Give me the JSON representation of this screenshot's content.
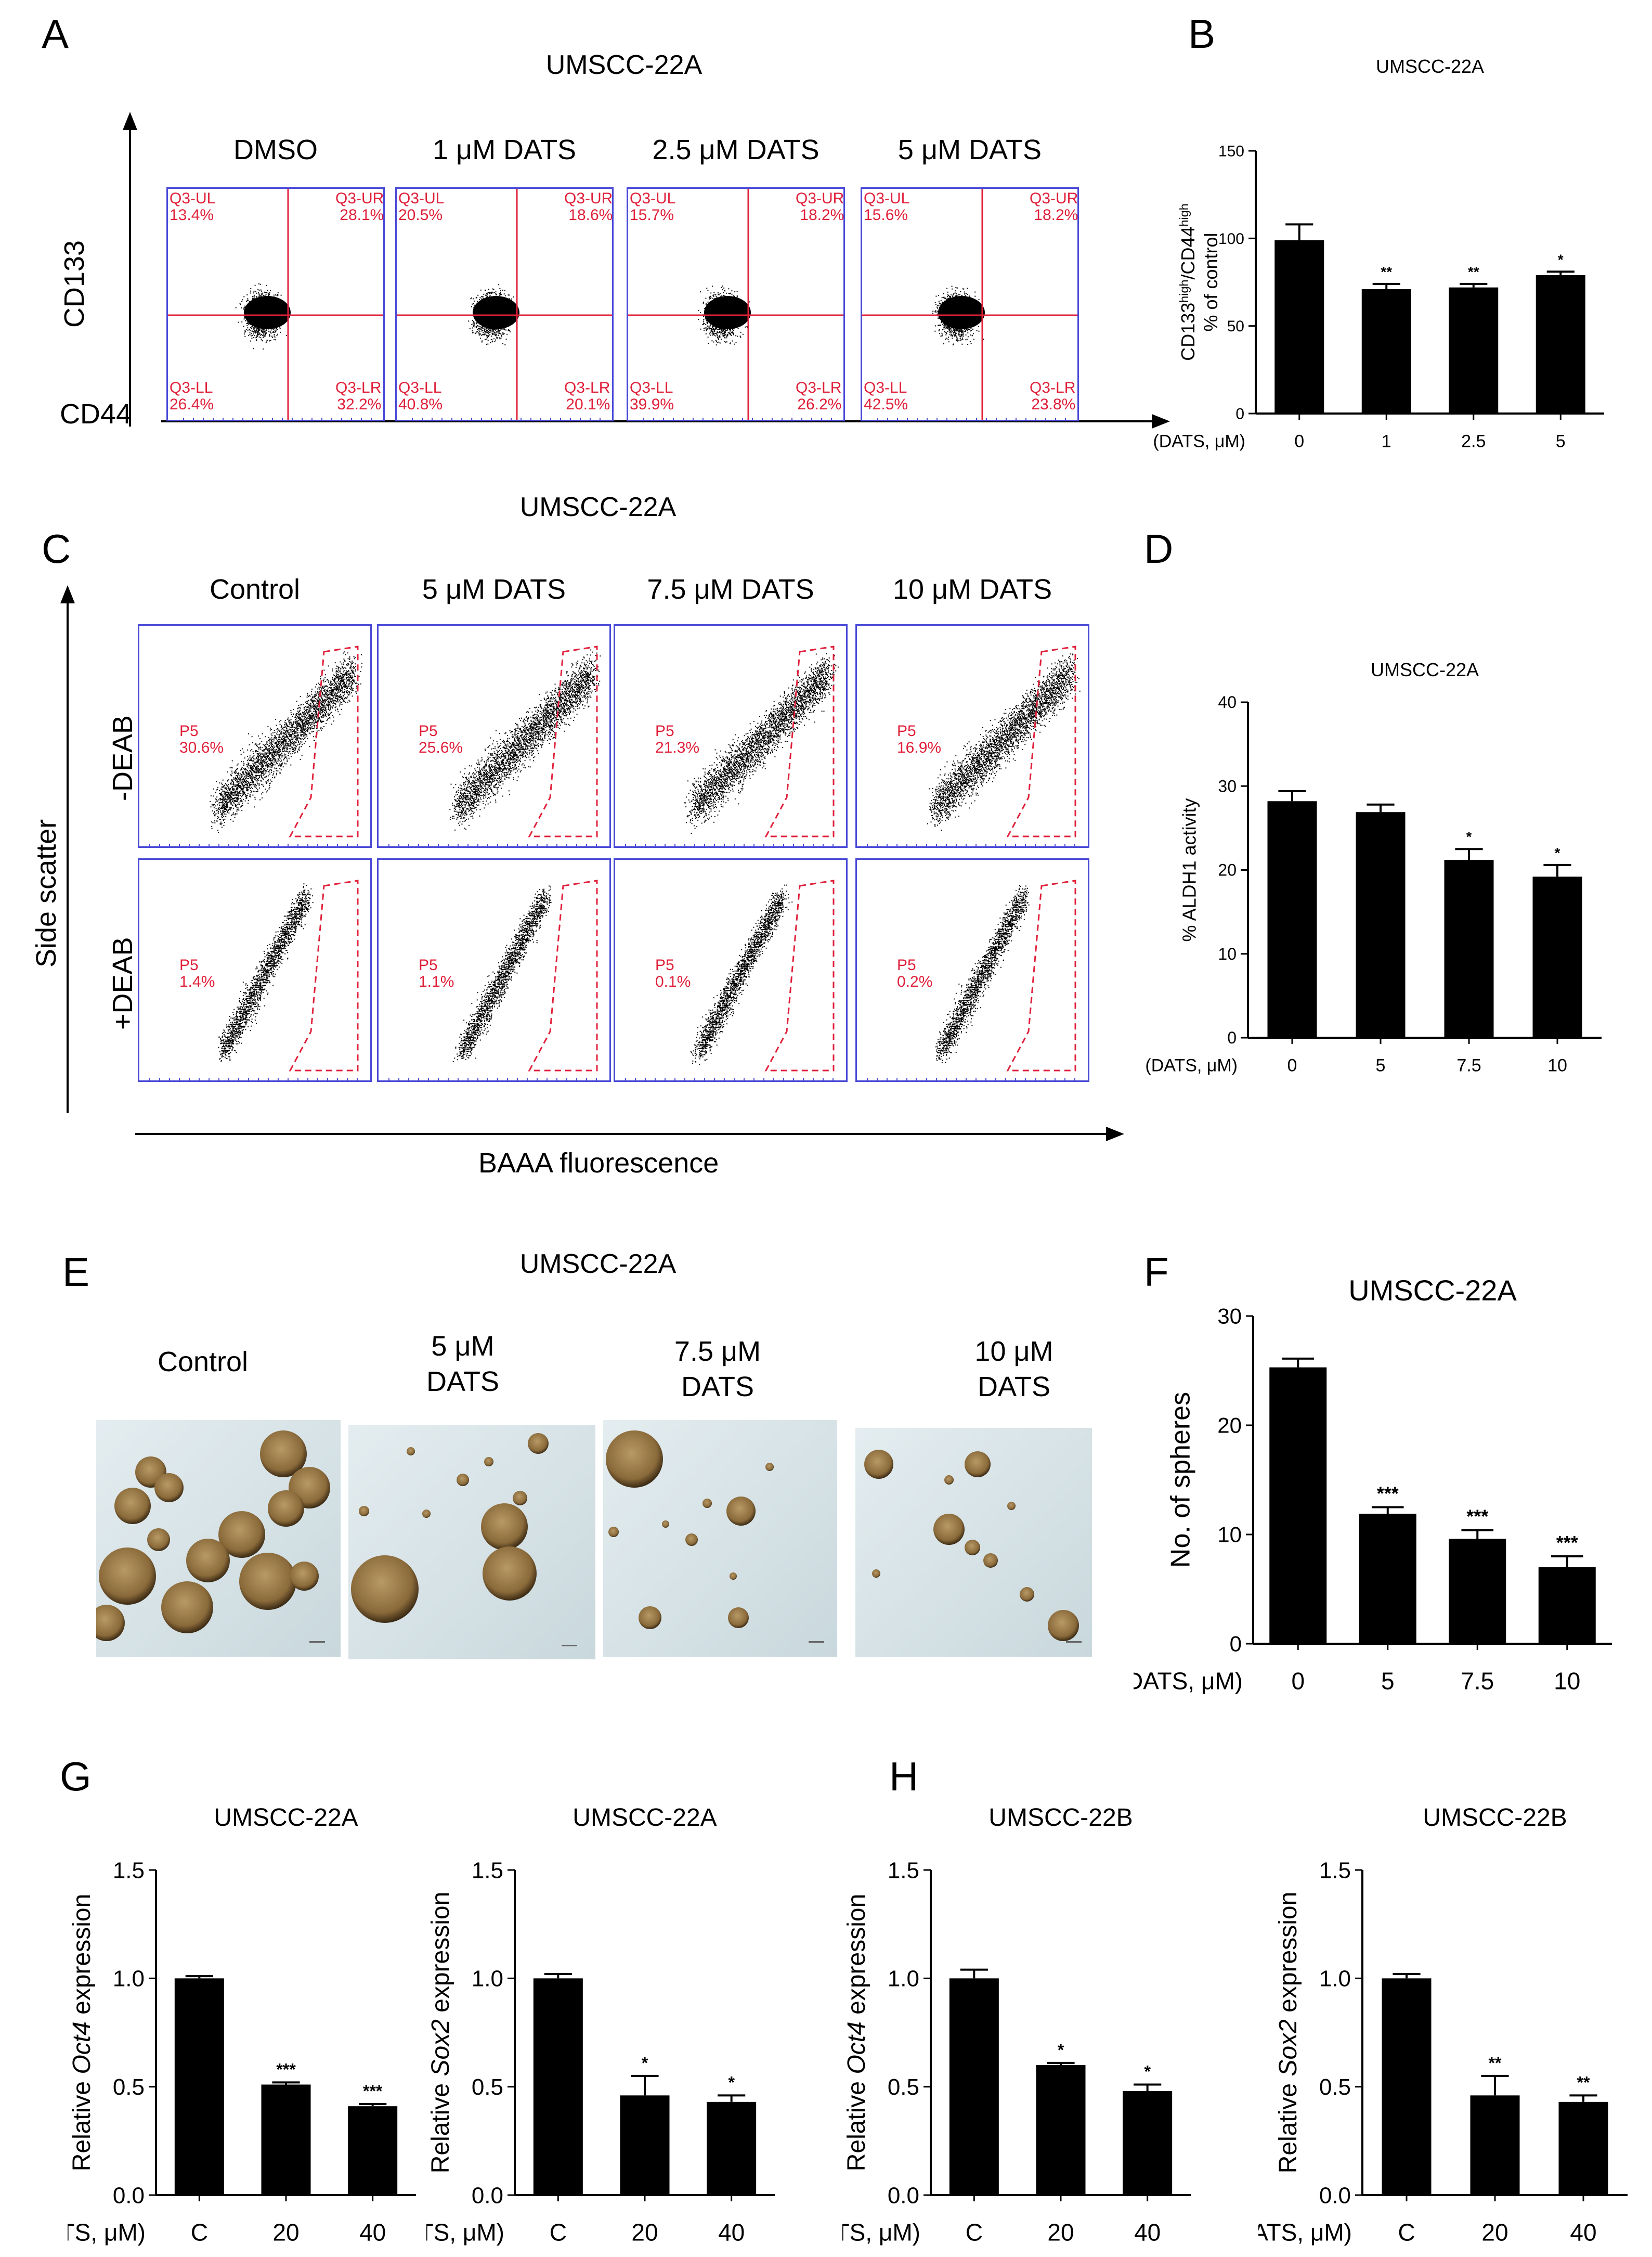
{
  "panel_letters": {
    "A": "A",
    "B": "B",
    "C": "C",
    "D": "D",
    "E": "E",
    "F": "F",
    "G": "G",
    "H": "H"
  },
  "panel_A": {
    "title": "UMSCC-22A",
    "y_axis": "CD133",
    "x_axis": "CD44",
    "plots": [
      {
        "label": "DMSO",
        "UL": "Q3-UL\n13.4%",
        "UR": "Q3-UR\n28.1%",
        "LL": "Q3-LL\n26.4%",
        "LR": "Q3-LR\n32.2%"
      },
      {
        "label": "1 μM  DATS",
        "UL": "Q3-UL\n20.5%",
        "UR": "Q3-UR\n18.6%",
        "LL": "Q3-LL\n40.8%",
        "LR": "Q3-LR\n20.1%"
      },
      {
        "label": "2.5 μM  DATS",
        "UL": "Q3-UL\n15.7%",
        "UR": "Q3-UR\n18.2%",
        "LL": "Q3-LL\n39.9%",
        "LR": "Q3-LR\n26.2%"
      },
      {
        "label": "5 μM DATS",
        "UL": "Q3-UL\n15.6%",
        "UR": "Q3-UR\n18.2%",
        "LL": "Q3-LL\n42.5%",
        "LR": "Q3-LR\n23.8%"
      }
    ]
  },
  "panel_C": {
    "title": "UMSCC-22A",
    "y_axis": "Side scatter",
    "x_axis": "BAAA fluorescence",
    "row_labels": [
      "-DEAB",
      "+DEAB"
    ],
    "columns": [
      "Control",
      "5 μM DATS",
      "7.5 μM DATS",
      "10 μM DATS"
    ],
    "minus_deab": [
      "P5\n30.6%",
      "P5\n25.6%",
      "P5\n21.3%",
      "P5\n16.9%"
    ],
    "plus_deab": [
      "P5\n1.4%",
      "P5\n1.1%",
      "P5\n0.1%",
      "P5\n0.2%"
    ]
  },
  "panel_E": {
    "title": "UMSCC-22A",
    "columns": [
      "Control",
      "5 μM\nDATS",
      "7.5 μM\nDATS",
      "10 μM\nDATS"
    ]
  },
  "chart_data": [
    {
      "id": "B",
      "type": "bar",
      "title": "UMSCC-22A",
      "ylabel": "CD133high/CD44high\n% of control",
      "ylabel_parts": [
        "CD133",
        "high",
        "/CD44",
        "high",
        "% of control"
      ],
      "xlabel": "(DATS, μM)",
      "categories": [
        "0",
        "1",
        "2.5",
        "5"
      ],
      "values": [
        99,
        71,
        72,
        79
      ],
      "errors": [
        9,
        3,
        2,
        2
      ],
      "significance": [
        "",
        "**",
        "**",
        "*"
      ],
      "ylim": [
        0,
        150
      ],
      "yticks": [
        "0",
        "50",
        "100",
        "150"
      ]
    },
    {
      "id": "D",
      "type": "bar",
      "title": "UMSCC-22A",
      "ylabel": "% ALDH1 activity",
      "xlabel": "(DATS, μM)",
      "categories": [
        "0",
        "5",
        "7.5",
        "10"
      ],
      "values": [
        28.2,
        26.9,
        21.2,
        19.2
      ],
      "errors": [
        1.2,
        0.9,
        1.3,
        1.4
      ],
      "significance": [
        "",
        "",
        "*",
        "*"
      ],
      "ylim": [
        0,
        40
      ],
      "yticks": [
        "0",
        "10",
        "20",
        "30",
        "40"
      ]
    },
    {
      "id": "F",
      "type": "bar",
      "title": "UMSCC-22A",
      "ylabel": "No. of spheres",
      "xlabel": "(DATS, μM)",
      "categories": [
        "0",
        "5",
        "7.5",
        "10"
      ],
      "values": [
        25.3,
        11.9,
        9.6,
        7.0
      ],
      "errors": [
        0.8,
        0.6,
        0.8,
        1.0
      ],
      "significance": [
        "",
        "***",
        "***",
        "***"
      ],
      "ylim": [
        0,
        30
      ],
      "yticks": [
        "0",
        "10",
        "20",
        "30"
      ]
    },
    {
      "id": "G1",
      "type": "bar",
      "title": "UMSCC-22A",
      "ylabel": "Relative Oct4 expression",
      "ylabel_parts": [
        "Relative ",
        "Oct4",
        " expression"
      ],
      "xlabel": "(DATS, μM)",
      "categories": [
        "C",
        "20",
        "40"
      ],
      "values": [
        1.0,
        0.51,
        0.41
      ],
      "errors": [
        0.01,
        0.01,
        0.01
      ],
      "significance": [
        "",
        "***",
        "***"
      ],
      "ylim": [
        0,
        1.5
      ],
      "yticks": [
        "0.0",
        "0.5",
        "1.0",
        "1.5"
      ]
    },
    {
      "id": "G2",
      "type": "bar",
      "title": "UMSCC-22A",
      "ylabel": "Relative Sox2 expression",
      "ylabel_parts": [
        "Relative ",
        "Sox2",
        " expression"
      ],
      "xlabel": "(DATS, μM)",
      "categories": [
        "C",
        "20",
        "40"
      ],
      "values": [
        1.0,
        0.46,
        0.43
      ],
      "errors": [
        0.02,
        0.09,
        0.03
      ],
      "significance": [
        "",
        "*",
        "*"
      ],
      "ylim": [
        0,
        1.5
      ],
      "yticks": [
        "0.0",
        "0.5",
        "1.0",
        "1.5"
      ]
    },
    {
      "id": "H1",
      "type": "bar",
      "title": "UMSCC-22B",
      "ylabel": "Relative Oct4 expression",
      "ylabel_parts": [
        "Relative ",
        "Oct4",
        " expression"
      ],
      "xlabel": "(DATS, μM)",
      "categories": [
        "C",
        "20",
        "40"
      ],
      "values": [
        1.0,
        0.6,
        0.48
      ],
      "errors": [
        0.04,
        0.01,
        0.03
      ],
      "significance": [
        "",
        "*",
        "*"
      ],
      "ylim": [
        0,
        1.5
      ],
      "yticks": [
        "0.0",
        "0.5",
        "1.0",
        "1.5"
      ]
    },
    {
      "id": "H2",
      "type": "bar",
      "title": "UMSCC-22B",
      "ylabel": "Relative Sox2 expression",
      "ylabel_parts": [
        "Relative ",
        "Sox2",
        " expression"
      ],
      "xlabel": "(DATS, μM)",
      "categories": [
        "C",
        "20",
        "40"
      ],
      "values": [
        1.0,
        0.46,
        0.43
      ],
      "errors": [
        0.02,
        0.09,
        0.03
      ],
      "significance": [
        "",
        "**",
        "**"
      ],
      "ylim": [
        0,
        1.5
      ],
      "yticks": [
        "0.0",
        "0.5",
        "1.0",
        "1.5"
      ]
    }
  ],
  "colors": {
    "bar": "#000000",
    "flow_border": "#4a4ad8",
    "gate": "#e0203a",
    "photo_bg": "#dbe6ea",
    "sphere": "#8a6a3a"
  }
}
